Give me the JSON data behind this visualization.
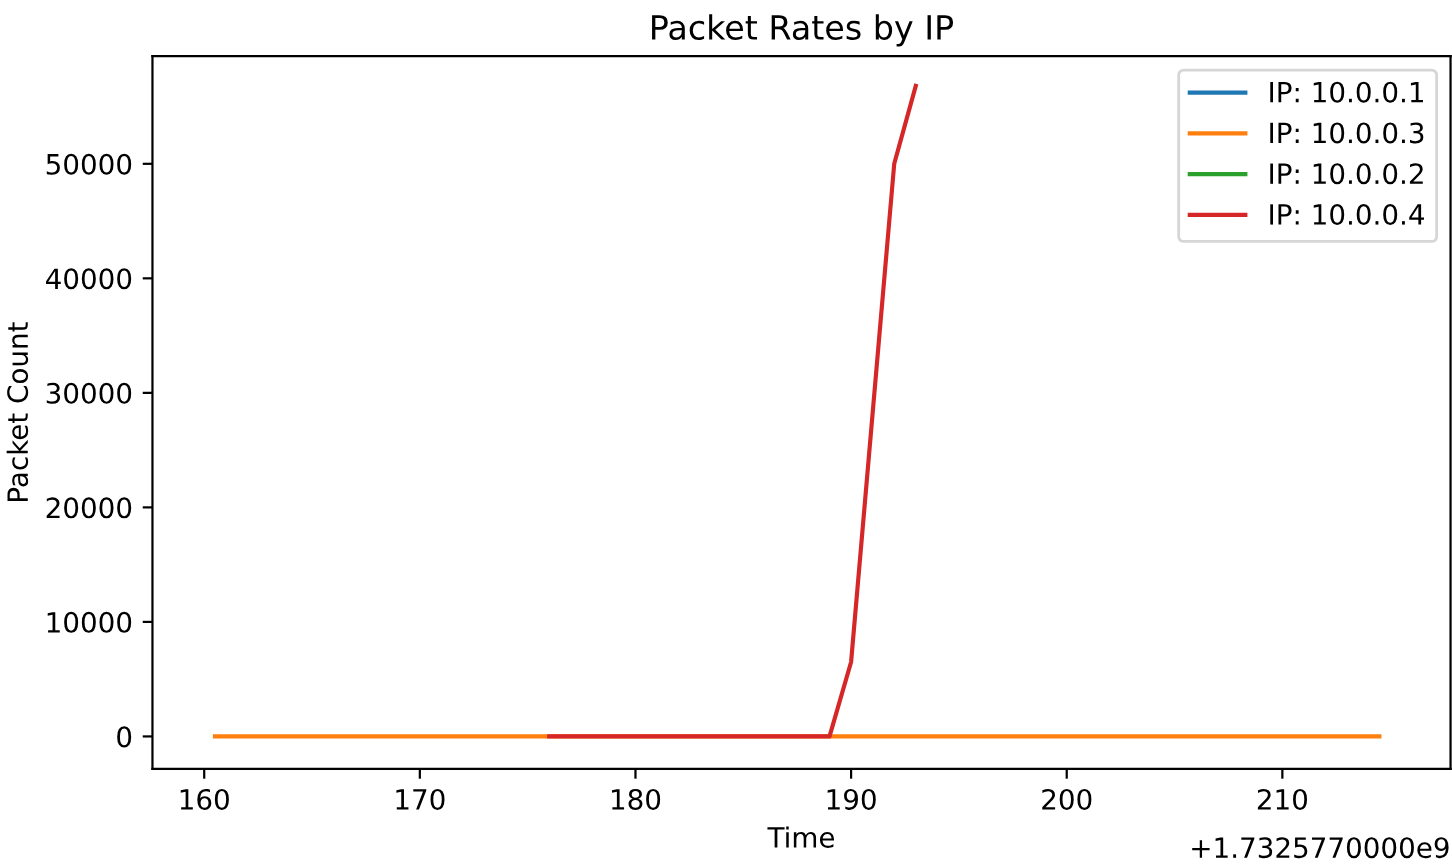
{
  "chart_data": {
    "type": "line",
    "title": "Packet Rates by IP",
    "xlabel": "Time",
    "ylabel": "Packet Count",
    "annotations": [
      "+1.7325770000e9"
    ],
    "series": [
      {
        "name": "IP: 10.0.0.1",
        "color": "#1f77b4"
      },
      {
        "name": "IP: 10.0.0.3",
        "color": "#ff7f0e",
        "x": [
          160.5,
          214.5
        ],
        "values": [
          0,
          0
        ]
      },
      {
        "name": "IP: 10.0.0.2",
        "color": "#2ca02c"
      },
      {
        "name": "IP: 10.0.0.4",
        "color": "#d62728",
        "x": [
          176,
          189,
          190,
          192,
          193
        ],
        "values": [
          0,
          0,
          6500,
          50000,
          56800
        ]
      }
    ],
    "xlim": [
      157.6,
      217.8
    ],
    "xticks": [
      160,
      170,
      180,
      190,
      200,
      210
    ],
    "ylim": [
      -2840,
      59400
    ],
    "yticks": [
      0,
      10000,
      20000,
      30000,
      40000,
      50000
    ],
    "legend": "top right",
    "grid": false,
    "marker": "none",
    "line_style": "solid"
  }
}
